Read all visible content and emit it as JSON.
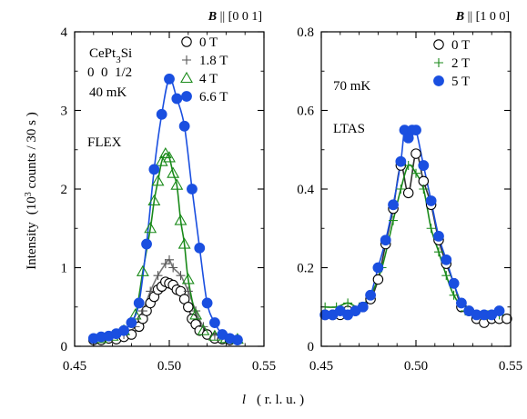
{
  "figure": {
    "ylabel_main": "Intensity",
    "ylabel_units_pre": "(10",
    "ylabel_units_sup": "3",
    "ylabel_units_post": " counts / 30 s )",
    "xlabel_symbol": "l",
    "xlabel_units": "( r. l. u. )"
  },
  "chart_data": [
    {
      "type": "scatter",
      "field_symbol": "B",
      "field_rest": " || [0 0 1]",
      "xlim": [
        0.45,
        0.55
      ],
      "ylim": [
        0,
        4
      ],
      "xticks": [
        0.45,
        0.5,
        0.55
      ],
      "xtick_labels": [
        "0.45",
        "0.50",
        "0.55"
      ],
      "yticks": [
        0,
        1,
        2,
        3,
        4
      ],
      "ytick_labels": [
        "0",
        "1",
        "2",
        "3",
        "4"
      ],
      "info": {
        "sample_pre": "CePt",
        "sample_sub": "3",
        "sample_post": "Si",
        "reflection": "0  0  1/2",
        "temperature": "40 mK",
        "instrument": "FLEX"
      },
      "legend_position": "top-right",
      "series": [
        {
          "name": "0 T",
          "marker": "open-circle",
          "color": "#000000",
          "fit_color": "#444444",
          "x": [
            0.46,
            0.464,
            0.468,
            0.472,
            0.476,
            0.48,
            0.484,
            0.486,
            0.488,
            0.49,
            0.492,
            0.494,
            0.496,
            0.498,
            0.5,
            0.502,
            0.504,
            0.506,
            0.508,
            0.51,
            0.512,
            0.514,
            0.516,
            0.52,
            0.524,
            0.528,
            0.532,
            0.536
          ],
          "y": [
            0.08,
            0.08,
            0.1,
            0.09,
            0.12,
            0.15,
            0.25,
            0.35,
            0.45,
            0.55,
            0.63,
            0.72,
            0.76,
            0.82,
            0.8,
            0.78,
            0.72,
            0.7,
            0.6,
            0.5,
            0.35,
            0.28,
            0.2,
            0.15,
            0.1,
            0.09,
            0.08,
            0.08
          ]
        },
        {
          "name": "1.8 T",
          "marker": "plus",
          "color": "#555555",
          "fit_color": "#777777",
          "x": [
            0.464,
            0.47,
            0.476,
            0.482,
            0.486,
            0.49,
            0.494,
            0.498,
            0.5,
            0.502,
            0.506,
            0.51,
            0.514,
            0.518,
            0.524,
            0.53,
            0.536
          ],
          "y": [
            0.1,
            0.12,
            0.15,
            0.25,
            0.45,
            0.7,
            0.9,
            1.05,
            1.1,
            1.0,
            0.9,
            0.7,
            0.45,
            0.25,
            0.14,
            0.1,
            0.09
          ]
        },
        {
          "name": "4 T",
          "marker": "open-triangle",
          "color": "#1a8a1a",
          "fit_color": "#1a8a1a",
          "x": [
            0.464,
            0.47,
            0.476,
            0.482,
            0.486,
            0.49,
            0.492,
            0.494,
            0.496,
            0.498,
            0.5,
            0.502,
            0.504,
            0.506,
            0.508,
            0.51,
            0.514,
            0.518,
            0.524,
            0.53,
            0.536
          ],
          "y": [
            0.1,
            0.13,
            0.2,
            0.4,
            0.95,
            1.5,
            1.85,
            2.1,
            2.35,
            2.45,
            2.4,
            2.2,
            2.05,
            1.6,
            1.3,
            0.85,
            0.4,
            0.2,
            0.13,
            0.1,
            0.09
          ]
        },
        {
          "name": "6.6 T",
          "marker": "filled-circle",
          "color": "#1a4fe0",
          "fit_color": "#1a4fe0",
          "x": [
            0.46,
            0.464,
            0.468,
            0.472,
            0.476,
            0.48,
            0.484,
            0.488,
            0.492,
            0.496,
            0.5,
            0.504,
            0.508,
            0.512,
            0.516,
            0.52,
            0.524,
            0.528,
            0.532,
            0.536
          ],
          "y": [
            0.1,
            0.12,
            0.13,
            0.16,
            0.2,
            0.3,
            0.55,
            1.3,
            2.25,
            2.95,
            3.4,
            3.15,
            2.8,
            2.0,
            1.25,
            0.55,
            0.3,
            0.15,
            0.1,
            0.08
          ]
        }
      ]
    },
    {
      "type": "scatter",
      "field_symbol": "B",
      "field_rest": " || [1 0 0]",
      "xlim": [
        0.45,
        0.55
      ],
      "ylim": [
        0,
        0.8
      ],
      "xticks": [
        0.45,
        0.5,
        0.55
      ],
      "xtick_labels": [
        "0.45",
        "0.50",
        "0.55"
      ],
      "yticks": [
        0,
        0.2,
        0.4,
        0.6,
        0.8
      ],
      "ytick_labels": [
        "0",
        "0.2",
        "0.4",
        "0.6",
        "0.8"
      ],
      "info": {
        "temperature": "70 mK",
        "instrument": "LTAS"
      },
      "legend_position": "top-right",
      "series": [
        {
          "name": "0 T",
          "marker": "open-circle",
          "color": "#000000",
          "fit_color": "#333333",
          "x": [
            0.452,
            0.456,
            0.46,
            0.464,
            0.468,
            0.472,
            0.476,
            0.48,
            0.484,
            0.488,
            0.492,
            0.496,
            0.5,
            0.504,
            0.508,
            0.512,
            0.516,
            0.52,
            0.524,
            0.528,
            0.532,
            0.536,
            0.54,
            0.544,
            0.548
          ],
          "y": [
            0.08,
            0.08,
            0.08,
            0.09,
            0.09,
            0.1,
            0.12,
            0.17,
            0.26,
            0.35,
            0.46,
            0.39,
            0.49,
            0.42,
            0.36,
            0.27,
            0.21,
            0.16,
            0.1,
            0.09,
            0.07,
            0.06,
            0.07,
            0.07,
            0.07
          ]
        },
        {
          "name": "2 T",
          "marker": "plus",
          "color": "#1a8a1a",
          "fit_color": "#1a8a1a",
          "x": [
            0.452,
            0.458,
            0.464,
            0.47,
            0.476,
            0.482,
            0.488,
            0.492,
            0.496,
            0.5,
            0.504,
            0.508,
            0.512,
            0.516,
            0.52,
            0.526,
            0.532,
            0.538,
            0.544
          ],
          "y": [
            0.1,
            0.1,
            0.11,
            0.1,
            0.13,
            0.2,
            0.32,
            0.4,
            0.46,
            0.44,
            0.4,
            0.3,
            0.24,
            0.18,
            0.13,
            0.09,
            0.08,
            0.08,
            0.08
          ]
        },
        {
          "name": "5 T",
          "marker": "filled-circle",
          "color": "#1a4fe0",
          "fit_color": "#1a4fe0",
          "x": [
            0.452,
            0.456,
            0.46,
            0.464,
            0.468,
            0.472,
            0.476,
            0.48,
            0.484,
            0.488,
            0.492,
            0.494,
            0.496,
            0.498,
            0.5,
            0.504,
            0.508,
            0.512,
            0.516,
            0.52,
            0.524,
            0.528,
            0.532,
            0.536,
            0.54,
            0.544
          ],
          "y": [
            0.08,
            0.08,
            0.09,
            0.08,
            0.09,
            0.1,
            0.13,
            0.2,
            0.27,
            0.36,
            0.47,
            0.55,
            0.53,
            0.55,
            0.55,
            0.46,
            0.37,
            0.28,
            0.22,
            0.16,
            0.11,
            0.09,
            0.08,
            0.08,
            0.08,
            0.09
          ]
        }
      ]
    }
  ]
}
